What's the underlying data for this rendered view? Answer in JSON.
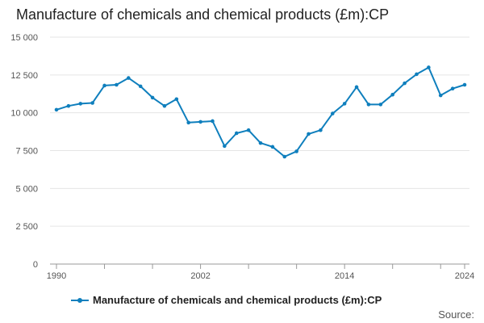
{
  "title": "Manufacture of chemicals and chemical products (£m):CP",
  "source_label": "Source:",
  "colors": {
    "series": "#0f7fbd",
    "grid": "#e5e5e5",
    "axis": "#999999"
  },
  "chart_data": {
    "type": "line",
    "title": "Manufacture of chemicals and chemical products (£m):CP",
    "xlabel": "",
    "ylabel": "",
    "xlim": [
      1990,
      2024
    ],
    "ylim": [
      0,
      15000
    ],
    "y_ticks": [
      0,
      2500,
      5000,
      7500,
      10000,
      12500,
      15000
    ],
    "y_tick_labels": [
      "0",
      "2 500",
      "5 000",
      "7 500",
      "10 000",
      "12 500",
      "15 000"
    ],
    "x_tick_labels": [
      {
        "value": 1990,
        "label": "1990"
      },
      {
        "value": 2002,
        "label": "2002"
      },
      {
        "value": 2014,
        "label": "2014"
      },
      {
        "value": 2024,
        "label": "2024"
      }
    ],
    "x_minor_ticks": [
      1990,
      1994,
      1998,
      2002,
      2006,
      2010,
      2014,
      2018,
      2022
    ],
    "grid": true,
    "legend": "bottom",
    "series": [
      {
        "name": "Manufacture of chemicals and chemical products (£m):CP",
        "x": [
          1990,
          1991,
          1992,
          1993,
          1994,
          1995,
          1996,
          1997,
          1998,
          1999,
          2000,
          2001,
          2002,
          2003,
          2004,
          2005,
          2006,
          2007,
          2008,
          2009,
          2010,
          2011,
          2012,
          2013,
          2014,
          2015,
          2016,
          2017,
          2018,
          2019,
          2020,
          2021,
          2022,
          2023,
          2024
        ],
        "y": [
          10200,
          10450,
          10600,
          10650,
          11800,
          11850,
          12300,
          11750,
          11000,
          10450,
          10900,
          9350,
          9400,
          9450,
          7800,
          8650,
          8850,
          8000,
          7750,
          7100,
          7450,
          8600,
          8850,
          9950,
          10600,
          11700,
          10550,
          10550,
          11200,
          11950,
          12550,
          13000,
          11150,
          11600,
          11850
        ]
      }
    ]
  }
}
